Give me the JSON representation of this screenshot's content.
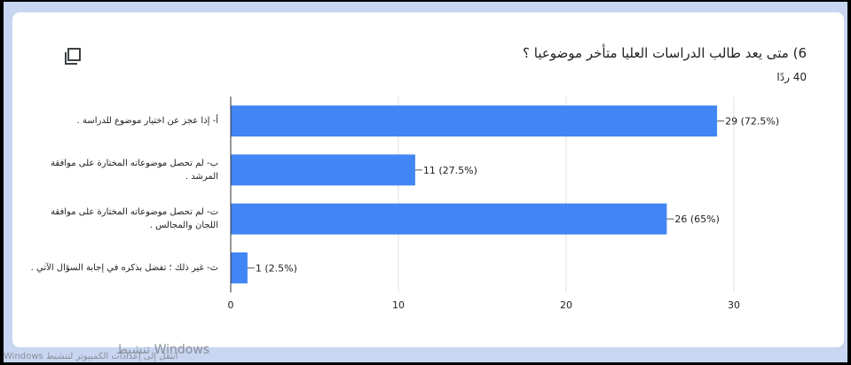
{
  "question": {
    "title": "6) متى يعد طالب الدراسات العليا متأخر موضوعيا ؟",
    "responses": "40 ردًا"
  },
  "icons": {
    "copy": "copy-chart-icon"
  },
  "colors": {
    "bar": "#4285f4",
    "axis": "#333333",
    "grid": "#e0e0e0"
  },
  "chart_data": {
    "type": "bar",
    "orientation": "horizontal",
    "categories": [
      "أ- إذا عجز عن اختيار موضوع للدراسة .",
      "ب- لم تحصل موضوعاته المختارة على موافقة المرشد .",
      "ت- لم تحصل موضوعاته المختارة على موافقة اللجان والمجالس .",
      "ث- غير ذلك ؛ تفضل بذكره في إجابة السؤال الآتي ."
    ],
    "values": [
      29,
      11,
      26,
      1
    ],
    "value_labels": [
      "29 (72.5%)",
      "11 (27.5%)",
      "26 (65%)",
      "1 (2.5%)"
    ],
    "xlim": [
      0,
      30
    ],
    "x_ticks": [
      "0",
      "10",
      "20",
      "30"
    ],
    "grid": true
  },
  "watermark": {
    "line1": "تنشيط Windows",
    "line2": "انتقل إلى إعدادات الكمبيوتر لتنشيط Windows"
  }
}
